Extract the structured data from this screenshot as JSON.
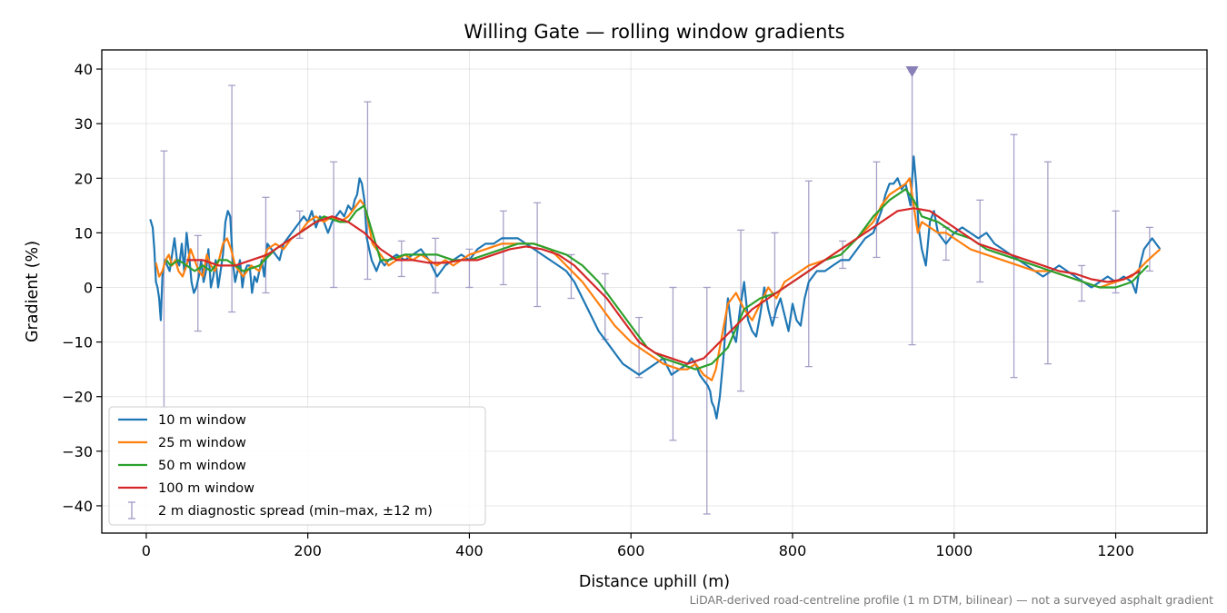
{
  "chart_data": {
    "type": "line",
    "title": "Willing Gate — rolling window gradients",
    "xlabel": "Distance uphill (m)",
    "ylabel": "Gradient (%)",
    "xlim": [
      -55,
      1313
    ],
    "ylim": [
      -45,
      43.5
    ],
    "xticks": [
      0,
      200,
      400,
      600,
      800,
      1000,
      1200
    ],
    "yticks": [
      -40,
      -30,
      -20,
      -10,
      0,
      10,
      20,
      30,
      40
    ],
    "xtick_labels": [
      "0",
      "200",
      "400",
      "600",
      "800",
      "1000",
      "1200"
    ],
    "ytick_labels": [
      "−40",
      "−30",
      "−20",
      "−10",
      "0",
      "10",
      "20",
      "30",
      "40"
    ],
    "grid": true,
    "legend_position": "lower-left",
    "footnote": "LiDAR-derived road-centreline profile (1 m DTM, bilinear) — not a surveyed asphalt gradient",
    "series": [
      {
        "name": "10 m window",
        "color": "#1f77b4",
        "x": [
          5,
          8,
          10,
          12,
          14,
          16,
          18,
          20,
          23,
          26,
          29,
          32,
          35,
          38,
          41,
          44,
          47,
          50,
          53,
          56,
          59,
          62,
          65,
          68,
          71,
          74,
          77,
          80,
          83,
          86,
          89,
          92,
          95,
          98,
          101,
          104,
          107,
          110,
          113,
          116,
          119,
          122,
          125,
          128,
          131,
          134,
          137,
          140,
          143,
          146,
          150,
          155,
          160,
          165,
          170,
          175,
          180,
          185,
          190,
          195,
          200,
          205,
          210,
          215,
          220,
          225,
          230,
          235,
          240,
          245,
          250,
          255,
          258,
          261,
          264,
          267,
          270,
          273,
          276,
          279,
          282,
          285,
          290,
          295,
          300,
          310,
          320,
          330,
          340,
          350,
          360,
          370,
          380,
          390,
          400,
          410,
          420,
          430,
          440,
          450,
          460,
          470,
          480,
          490,
          500,
          510,
          520,
          530,
          540,
          550,
          560,
          570,
          580,
          590,
          600,
          610,
          620,
          630,
          640,
          650,
          660,
          670,
          675,
          680,
          685,
          690,
          695,
          698,
          700,
          703,
          706,
          710,
          715,
          718,
          720,
          725,
          730,
          735,
          740,
          745,
          750,
          755,
          760,
          765,
          770,
          775,
          780,
          785,
          790,
          795,
          800,
          805,
          810,
          815,
          820,
          825,
          830,
          840,
          850,
          860,
          870,
          880,
          890,
          900,
          905,
          910,
          915,
          920,
          925,
          930,
          935,
          940,
          943,
          946,
          948,
          950,
          953,
          956,
          960,
          965,
          970,
          975,
          980,
          990,
          1000,
          1010,
          1020,
          1030,
          1040,
          1050,
          1060,
          1070,
          1080,
          1090,
          1100,
          1110,
          1120,
          1130,
          1140,
          1150,
          1160,
          1170,
          1180,
          1190,
          1200,
          1210,
          1220,
          1225,
          1230,
          1235,
          1240,
          1245,
          1250,
          1255
        ],
        "values": [
          12.5,
          11,
          7,
          1,
          0,
          -2,
          -6,
          2,
          5,
          4,
          3,
          6,
          9,
          5,
          4,
          8,
          3,
          10,
          6,
          1,
          -1,
          0,
          2,
          5,
          1,
          3,
          7,
          0,
          2,
          5,
          0,
          3,
          6,
          12,
          14,
          13,
          5,
          1,
          3,
          5,
          0,
          3,
          4,
          4,
          -1,
          2,
          1,
          3,
          5,
          2,
          8,
          7,
          6,
          5,
          8,
          9,
          10,
          11,
          12,
          13,
          12,
          14,
          11,
          13,
          12,
          10,
          12,
          13,
          14,
          13,
          15,
          14,
          16,
          17,
          20,
          19,
          16,
          9,
          7,
          5,
          4,
          3,
          5,
          4,
          5,
          6,
          5,
          6,
          7,
          5,
          2,
          4,
          5,
          6,
          5,
          7,
          8,
          8,
          9,
          9,
          9,
          8,
          7,
          6,
          5,
          4,
          3,
          1,
          -2,
          -5,
          -8,
          -10,
          -12,
          -14,
          -15,
          -16,
          -15,
          -14,
          -13,
          -16,
          -15,
          -14,
          -13,
          -14,
          -16,
          -17,
          -18,
          -19,
          -21,
          -22,
          -24,
          -20,
          -12,
          -5,
          -2,
          -8,
          -10,
          -4,
          1,
          -6,
          -8,
          -9,
          -5,
          0,
          -4,
          -7,
          -4,
          -2,
          -5,
          -8,
          -3,
          -6,
          -7,
          -2,
          1,
          2,
          3,
          3,
          4,
          5,
          5,
          7,
          9,
          10,
          12,
          14,
          17,
          19,
          19,
          20,
          18,
          19,
          17,
          15,
          20,
          24,
          19,
          11,
          7,
          4,
          12,
          14,
          10,
          8,
          10,
          11,
          10,
          9,
          10,
          8,
          7,
          6,
          5,
          4,
          3,
          2,
          3,
          4,
          3,
          2,
          1,
          0,
          1,
          2,
          1,
          2,
          1,
          -1,
          4,
          7,
          8,
          9,
          8,
          7
        ],
        "width": 2.2
      },
      {
        "name": "25 m window",
        "color": "#ff7f0e",
        "x": [
          12,
          16,
          20,
          24,
          28,
          32,
          36,
          40,
          45,
          50,
          55,
          60,
          65,
          70,
          75,
          80,
          85,
          90,
          95,
          100,
          105,
          110,
          115,
          120,
          130,
          140,
          150,
          160,
          170,
          180,
          190,
          200,
          210,
          220,
          230,
          240,
          250,
          255,
          260,
          265,
          270,
          275,
          280,
          290,
          300,
          310,
          320,
          330,
          340,
          350,
          360,
          370,
          380,
          390,
          400,
          420,
          440,
          460,
          480,
          500,
          520,
          540,
          560,
          580,
          600,
          620,
          640,
          660,
          670,
          680,
          690,
          700,
          705,
          710,
          715,
          720,
          730,
          740,
          750,
          760,
          770,
          780,
          790,
          800,
          820,
          840,
          860,
          880,
          900,
          910,
          920,
          930,
          940,
          945,
          950,
          955,
          960,
          970,
          980,
          990,
          1000,
          1020,
          1040,
          1060,
          1080,
          1100,
          1120,
          1140,
          1160,
          1180,
          1200,
          1220,
          1240,
          1255
        ],
        "values": [
          4.5,
          2,
          3,
          5,
          6,
          4,
          5,
          3,
          2,
          4,
          7,
          5,
          3,
          2,
          6,
          4,
          3,
          5,
          8,
          9,
          7,
          4,
          3,
          2,
          4,
          3,
          7,
          8,
          7,
          9,
          10,
          12,
          13,
          12,
          13,
          12,
          13,
          14,
          15,
          16,
          15,
          12,
          8,
          6,
          4,
          5,
          6,
          5,
          6,
          5,
          4,
          5,
          4,
          5,
          6,
          7,
          8,
          8,
          8,
          7,
          4,
          1,
          -3,
          -7,
          -10,
          -12,
          -14,
          -15,
          -15,
          -14,
          -16,
          -17,
          -15,
          -11,
          -7,
          -3,
          -1,
          -4,
          -6,
          -3,
          0,
          -2,
          1,
          2,
          4,
          5,
          7,
          9,
          12,
          15,
          17,
          18,
          19,
          20,
          15,
          10,
          12,
          11,
          10,
          10,
          9,
          7,
          6,
          5,
          4,
          3,
          3,
          2,
          1,
          0,
          1,
          2,
          5,
          7
        ],
        "width": 2.2
      },
      {
        "name": "50 m window",
        "color": "#2ca02c",
        "x": [
          25,
          30,
          40,
          50,
          60,
          70,
          80,
          90,
          100,
          110,
          120,
          140,
          160,
          180,
          200,
          220,
          240,
          250,
          260,
          270,
          280,
          290,
          300,
          320,
          340,
          360,
          380,
          400,
          420,
          440,
          460,
          480,
          500,
          520,
          540,
          560,
          580,
          600,
          620,
          640,
          660,
          680,
          700,
          720,
          740,
          760,
          780,
          800,
          820,
          840,
          860,
          880,
          900,
          920,
          930,
          940,
          950,
          960,
          980,
          1000,
          1020,
          1040,
          1060,
          1080,
          1100,
          1120,
          1140,
          1160,
          1180,
          1200,
          1220,
          1240
        ],
        "values": [
          5,
          4,
          5,
          4,
          3,
          4,
          3,
          5,
          5,
          4,
          3,
          4,
          7,
          9,
          11,
          13,
          12,
          12,
          14,
          15,
          10,
          5,
          5,
          6,
          6,
          6,
          5,
          5,
          6,
          7,
          8,
          8,
          7,
          6,
          4,
          1,
          -3,
          -7,
          -11,
          -13,
          -14,
          -15,
          -14,
          -11,
          -4,
          -2,
          -1,
          1,
          3,
          5,
          6,
          9,
          13,
          16,
          17,
          18,
          16,
          13,
          12,
          10,
          9,
          7,
          6,
          5,
          4,
          3,
          2,
          1,
          0,
          0,
          1,
          4
        ],
        "width": 2.2
      },
      {
        "name": "100 m window",
        "color": "#d62728",
        "x": [
          50,
          70,
          90,
          110,
          130,
          150,
          170,
          190,
          210,
          230,
          250,
          270,
          290,
          310,
          330,
          350,
          370,
          390,
          410,
          430,
          450,
          470,
          490,
          510,
          530,
          550,
          570,
          590,
          610,
          630,
          650,
          670,
          690,
          710,
          730,
          750,
          770,
          790,
          810,
          830,
          850,
          870,
          890,
          910,
          930,
          950,
          970,
          990,
          1010,
          1030,
          1050,
          1070,
          1090,
          1110,
          1130,
          1150,
          1170,
          1190,
          1210,
          1230
        ],
        "values": [
          5,
          5,
          4,
          4,
          5,
          6,
          8,
          10,
          12,
          13,
          12,
          10,
          7,
          5,
          5,
          4.5,
          4.5,
          5,
          5,
          6,
          7,
          7.5,
          7,
          6,
          4,
          1,
          -2,
          -6,
          -10,
          -12,
          -13,
          -14,
          -13,
          -10,
          -7,
          -4,
          -2,
          0,
          2,
          4,
          6,
          8,
          10,
          12,
          14,
          14.5,
          14,
          12,
          10,
          8,
          7,
          6,
          5,
          4,
          3,
          2.5,
          1.5,
          1,
          1.5,
          3
        ],
        "width": 2.2
      }
    ],
    "errorbars": {
      "name": "2 m diagnostic spread (min–max, ±12 m)",
      "color": "#9d97c2",
      "x": [
        22,
        64,
        106,
        148,
        190,
        232,
        274,
        316,
        358,
        400,
        442,
        484,
        526,
        568,
        610,
        652,
        694,
        736,
        778,
        820,
        862,
        904,
        948,
        990,
        1032,
        1074,
        1116,
        1158,
        1200,
        1242
      ],
      "low": [
        -22,
        -8,
        -4.5,
        -1,
        9,
        0,
        1.5,
        2,
        -1,
        0,
        0.5,
        -3.5,
        -2,
        -9.5,
        -16.5,
        -28,
        -41.5,
        -19,
        -5.5,
        -14.5,
        3.5,
        5.5,
        -10.5,
        5,
        1,
        -16.5,
        -14,
        -2.5,
        -1,
        3
      ],
      "high": [
        25,
        9.5,
        37,
        16.5,
        14,
        23,
        34,
        8.5,
        9,
        7,
        14,
        15.5,
        6,
        2.5,
        -5.5,
        0,
        0,
        10.5,
        10,
        19.5,
        8.5,
        23,
        39.5,
        11,
        16,
        28,
        23,
        4,
        14,
        11
      ],
      "marker_x": 948,
      "marker_y": 39.5
    }
  }
}
